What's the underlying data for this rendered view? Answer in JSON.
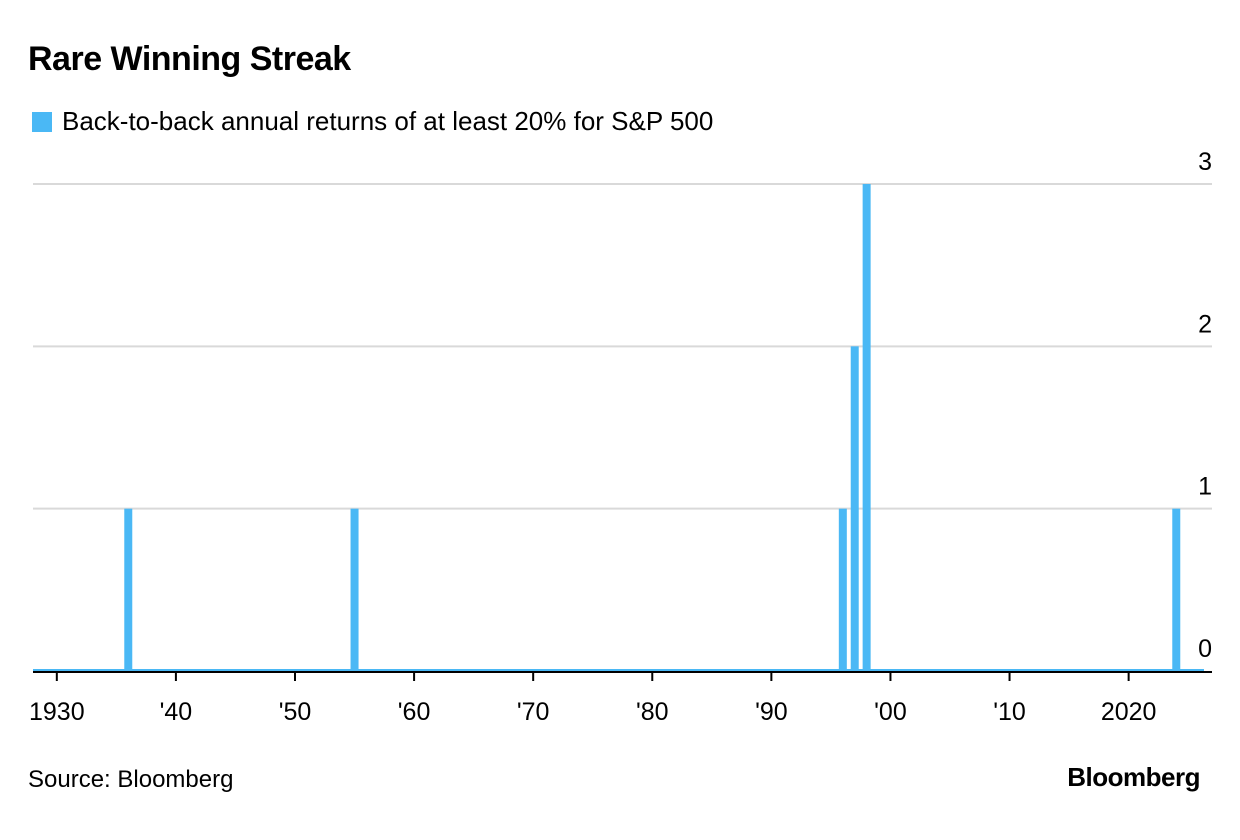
{
  "title": "Rare Winning Streak",
  "legend_label": "Back-to-back annual returns of at least 20% for S&P 500",
  "source": "Source: Bloomberg",
  "brand": "Bloomberg",
  "colors": {
    "bar": "#4ab8f5",
    "grid": "#d9d9d9",
    "axis": "#000000"
  },
  "chart_data": {
    "type": "bar",
    "title": "Rare Winning Streak",
    "xlabel": "",
    "ylabel": "",
    "series": [
      {
        "name": "Back-to-back annual returns of at least 20% for S&P 500",
        "x": [
          1936,
          1955,
          1996,
          1997,
          1998,
          2024
        ],
        "values": [
          1,
          1,
          1,
          2,
          3,
          1
        ]
      }
    ],
    "xlim": [
      1928,
      2027
    ],
    "ylim": [
      0,
      3
    ],
    "y_ticks": [
      "0",
      "1",
      "2",
      "3"
    ],
    "x_ticks": [
      {
        "year": 1930,
        "label": "1930"
      },
      {
        "year": 1940,
        "label": "'40"
      },
      {
        "year": 1950,
        "label": "'50"
      },
      {
        "year": 1960,
        "label": "'60"
      },
      {
        "year": 1970,
        "label": "'70"
      },
      {
        "year": 1980,
        "label": "'80"
      },
      {
        "year": 1990,
        "label": "'90"
      },
      {
        "year": 2000,
        "label": "'00"
      },
      {
        "year": 2010,
        "label": "'10"
      },
      {
        "year": 2020,
        "label": "2020"
      }
    ],
    "grid": true,
    "y_axis_position": "right",
    "legend_position": "top-left"
  }
}
